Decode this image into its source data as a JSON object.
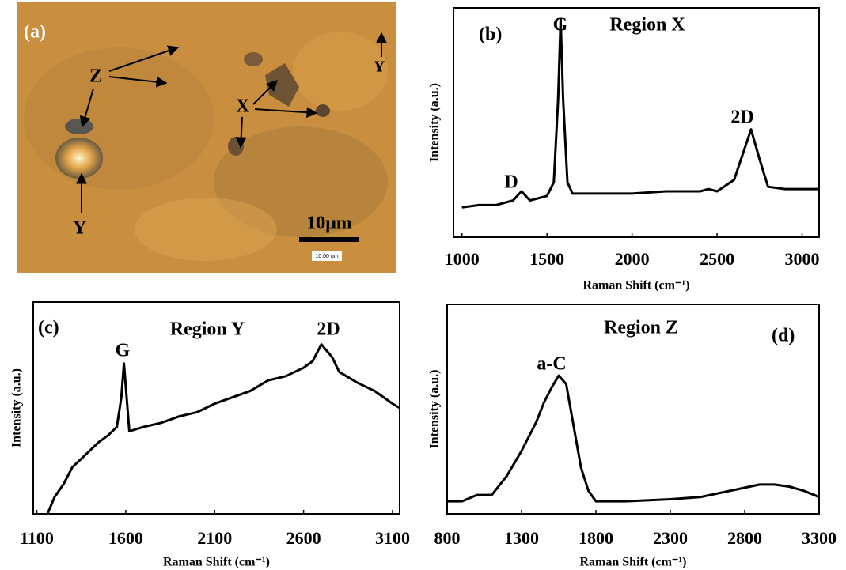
{
  "micrograph": {
    "panel_label": "(a)",
    "labels": [
      "Z",
      "X",
      "Y",
      "Y"
    ],
    "scale_bar": "10μm",
    "scale_caption": "10.00 um"
  },
  "chart_data": [
    {
      "type": "line",
      "title": "Region X",
      "annotations": [
        "(b)",
        "G",
        "D",
        "2D"
      ],
      "xlabel": "Raman Shift (cm⁻¹)",
      "ylabel": "Intensity  (a.u.)",
      "x": [
        1000,
        1100,
        1200,
        1300,
        1350,
        1400,
        1500,
        1540,
        1565,
        1580,
        1595,
        1620,
        1650,
        1800,
        2000,
        2200,
        2400,
        2450,
        2500,
        2600,
        2650,
        2700,
        2750,
        2800,
        2900,
        3000,
        3100
      ],
      "series": [
        {
          "name": "Region X",
          "color": "#000000",
          "values": [
            13,
            14,
            14,
            16,
            20,
            16,
            18,
            24,
            60,
            95,
            60,
            24,
            19,
            19,
            19,
            20,
            20,
            21,
            20,
            25,
            36,
            47,
            34,
            22,
            21,
            21,
            21
          ]
        }
      ],
      "xlim": [
        950,
        3100
      ],
      "xticks": [
        1000,
        1500,
        2000,
        2500,
        3000
      ],
      "ylim": [
        0,
        100
      ]
    },
    {
      "type": "line",
      "title": "Region Y",
      "annotations": [
        "(c)",
        "G",
        "2D"
      ],
      "xlabel": "Raman Shift (cm⁻¹)",
      "ylabel": "Intensity  (a.u.)",
      "x": [
        1160,
        1200,
        1250,
        1300,
        1350,
        1400,
        1450,
        1500,
        1550,
        1575,
        1590,
        1605,
        1620,
        1700,
        1800,
        1900,
        2000,
        2100,
        2200,
        2300,
        2400,
        2500,
        2600,
        2650,
        2700,
        2730,
        2760,
        2800,
        2900,
        3000,
        3100,
        3140
      ],
      "series": [
        {
          "name": "Region Y",
          "color": "#000000",
          "values": [
            0,
            8,
            14,
            22,
            26,
            30,
            34,
            37,
            41,
            55,
            71,
            55,
            39,
            41,
            43,
            46,
            48,
            52,
            55,
            58,
            63,
            65,
            69,
            72,
            80,
            77,
            74,
            67,
            62,
            58,
            52,
            50
          ]
        }
      ],
      "xlim": [
        1080,
        3140
      ],
      "xticks": [
        1100,
        1600,
        2100,
        2600,
        3100
      ],
      "ylim": [
        0,
        100
      ]
    },
    {
      "type": "line",
      "title": "Region Z",
      "annotations": [
        "(d)",
        "a-C"
      ],
      "xlabel": "Raman Shift (cm⁻¹)",
      "ylabel": "Intensity  (a.u.)",
      "x": [
        800,
        900,
        1000,
        1100,
        1200,
        1300,
        1400,
        1450,
        1500,
        1550,
        1600,
        1650,
        1700,
        1750,
        1800,
        2000,
        2300,
        2500,
        2700,
        2900,
        3000,
        3100,
        3200,
        3300
      ],
      "series": [
        {
          "name": "Region Z",
          "color": "#000000",
          "values": [
            6,
            6,
            9,
            9,
            18,
            30,
            44,
            53,
            60,
            66,
            62,
            42,
            22,
            11,
            6,
            6,
            7,
            8,
            11,
            14,
            14,
            13,
            11,
            8
          ]
        }
      ],
      "xlim": [
        800,
        3300
      ],
      "xticks": [
        800,
        1300,
        1800,
        2300,
        2800,
        3300
      ],
      "ylim": [
        0,
        100
      ]
    }
  ]
}
